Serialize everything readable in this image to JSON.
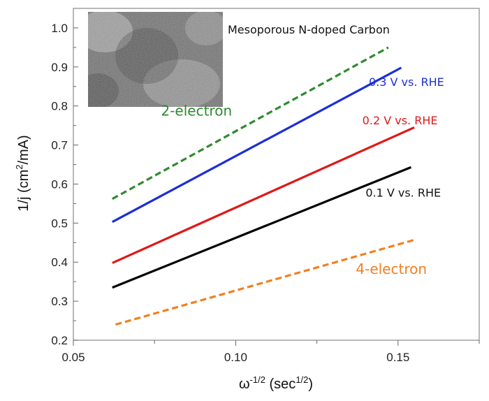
{
  "chart_data": {
    "type": "line",
    "xlabel": {
      "base": "ω",
      "base_sup": "-1/2",
      "unit_open": " (sec",
      "unit_sup": "1/2",
      "unit_close": ")"
    },
    "ylabel": {
      "pre": "1/j (cm",
      "sup": "2",
      "post": "/mA)"
    },
    "xlim": [
      0.05,
      0.175
    ],
    "ylim": [
      0.2,
      1.05
    ],
    "x_ticks": [
      0.05,
      0.1,
      0.15
    ],
    "x_tick_labels": [
      "0.05",
      "0.10",
      "0.15"
    ],
    "y_ticks": [
      0.2,
      0.3,
      0.4,
      0.5,
      0.6,
      0.7,
      0.8,
      0.9,
      1.0
    ],
    "y_tick_labels": [
      "0.2",
      "0.3",
      "0.4",
      "0.5",
      "0.6",
      "0.7",
      "0.8",
      "0.9",
      "1.0"
    ],
    "grid": false,
    "legend": "none",
    "series": [
      {
        "name": "2-electron",
        "x": [
          0.062,
          0.147
        ],
        "y": [
          0.562,
          0.95
        ],
        "color": "#2e8b2e",
        "dashed": true
      },
      {
        "name": "0.3 V vs. RHE",
        "x": [
          0.062,
          0.151
        ],
        "y": [
          0.503,
          0.898
        ],
        "color": "#1c2fd6",
        "dashed": false
      },
      {
        "name": "0.2 V vs. RHE",
        "x": [
          0.062,
          0.155
        ],
        "y": [
          0.398,
          0.745
        ],
        "color": "#e01818",
        "dashed": false
      },
      {
        "name": "0.1 V vs. RHE",
        "x": [
          0.062,
          0.154
        ],
        "y": [
          0.335,
          0.643
        ],
        "color": "#000000",
        "dashed": false
      },
      {
        "name": "4-electron",
        "x": [
          0.063,
          0.155
        ],
        "y": [
          0.24,
          0.457
        ],
        "color": "#f08020",
        "dashed": true
      }
    ],
    "annotations": [
      {
        "id": "two-electron",
        "text": "2-electron",
        "x": 0.077,
        "y": 0.775,
        "color": "#2e8b2e",
        "size": 20
      },
      {
        "id": "v03",
        "text": "0.3 V vs. RHE",
        "x": 0.141,
        "y": 0.851,
        "color": "#1c2fd6",
        "size": 16
      },
      {
        "id": "v02",
        "text": "0.2 V vs. RHE",
        "x": 0.139,
        "y": 0.753,
        "color": "#e01818",
        "size": 16
      },
      {
        "id": "v01",
        "text": "0.1 V vs. RHE",
        "x": 0.14,
        "y": 0.568,
        "color": "#111111",
        "size": 16
      },
      {
        "id": "four-electron",
        "text": "4-electron",
        "x": 0.137,
        "y": 0.37,
        "color": "#f08020",
        "size": 20
      }
    ]
  },
  "inset": {
    "caption": "Mesoporous N-doped Carbon",
    "colors": {
      "base": "#6e6e6e",
      "light": "#bcbcbc",
      "dark": "#2e2e2e"
    }
  }
}
